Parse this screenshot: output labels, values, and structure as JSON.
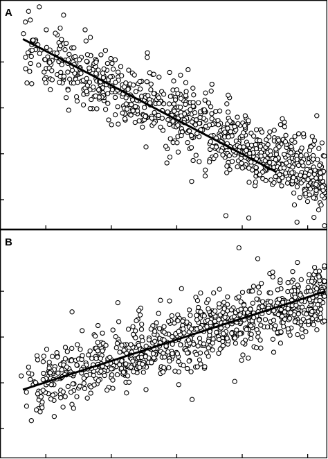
{
  "chart_data": [
    {
      "panel": "A",
      "type": "scatter",
      "title": "",
      "xlabel": "",
      "ylabel": "",
      "xlim": [
        0,
        10
      ],
      "ylim": [
        0,
        10
      ],
      "x_ticks": [
        1.4,
        3.4,
        5.4,
        7.4,
        9.4
      ],
      "y_ticks": [
        1.3,
        3.3,
        5.3,
        7.3
      ],
      "tick_labels_shown": false,
      "marker": "open-circle",
      "grid": false,
      "legend": "none",
      "n_points": 900,
      "cloud": {
        "x_range": [
          0.7,
          9.95
        ],
        "y_at_x_min": 7.9,
        "y_at_x_max": 2.1,
        "spread_sd": 0.75
      },
      "outliers": [
        {
          "x": 1.2,
          "y": 9.7
        },
        {
          "x": 2.6,
          "y": 8.7
        },
        {
          "x": 4.5,
          "y": 7.5
        },
        {
          "x": 7.6,
          "y": 0.5
        },
        {
          "x": 6.9,
          "y": 0.6
        },
        {
          "x": 5.1,
          "y": 2.9
        },
        {
          "x": 2.1,
          "y": 5.2
        },
        {
          "x": 9.95,
          "y": 3.2
        }
      ],
      "fit_line": {
        "x": [
          0.7,
          8.45
        ],
        "y": [
          8.3,
          2.5
        ]
      },
      "colors": {
        "marker_edge": "#000000",
        "marker_fill": "#ffffff",
        "line": "#000000"
      }
    },
    {
      "panel": "B",
      "type": "scatter",
      "title": "",
      "xlabel": "",
      "ylabel": "",
      "xlim": [
        0,
        10
      ],
      "ylim": [
        0,
        10
      ],
      "x_ticks": [
        1.4,
        3.4,
        5.4,
        7.4,
        9.4
      ],
      "y_ticks": [
        1.3,
        3.3,
        5.3,
        7.3
      ],
      "tick_labels_shown": false,
      "marker": "open-circle",
      "grid": false,
      "legend": "none",
      "n_points": 950,
      "cloud": {
        "x_range": [
          0.8,
          9.95
        ],
        "y_at_x_min": 3.0,
        "y_at_x_max": 7.2,
        "spread_sd": 0.7
      },
      "outliers": [
        {
          "x": 2.2,
          "y": 6.4
        },
        {
          "x": 7.3,
          "y": 9.2
        },
        {
          "x": 3.6,
          "y": 6.8
        },
        {
          "x": 6.1,
          "y": 4.3
        },
        {
          "x": 9.95,
          "y": 6.0
        },
        {
          "x": 0.65,
          "y": 3.6
        }
      ],
      "fit_line": {
        "x": [
          0.7,
          9.95
        ],
        "y": [
          3.0,
          7.3
        ]
      },
      "colors": {
        "marker_edge": "#000000",
        "marker_fill": "#ffffff",
        "line": "#000000"
      }
    }
  ]
}
